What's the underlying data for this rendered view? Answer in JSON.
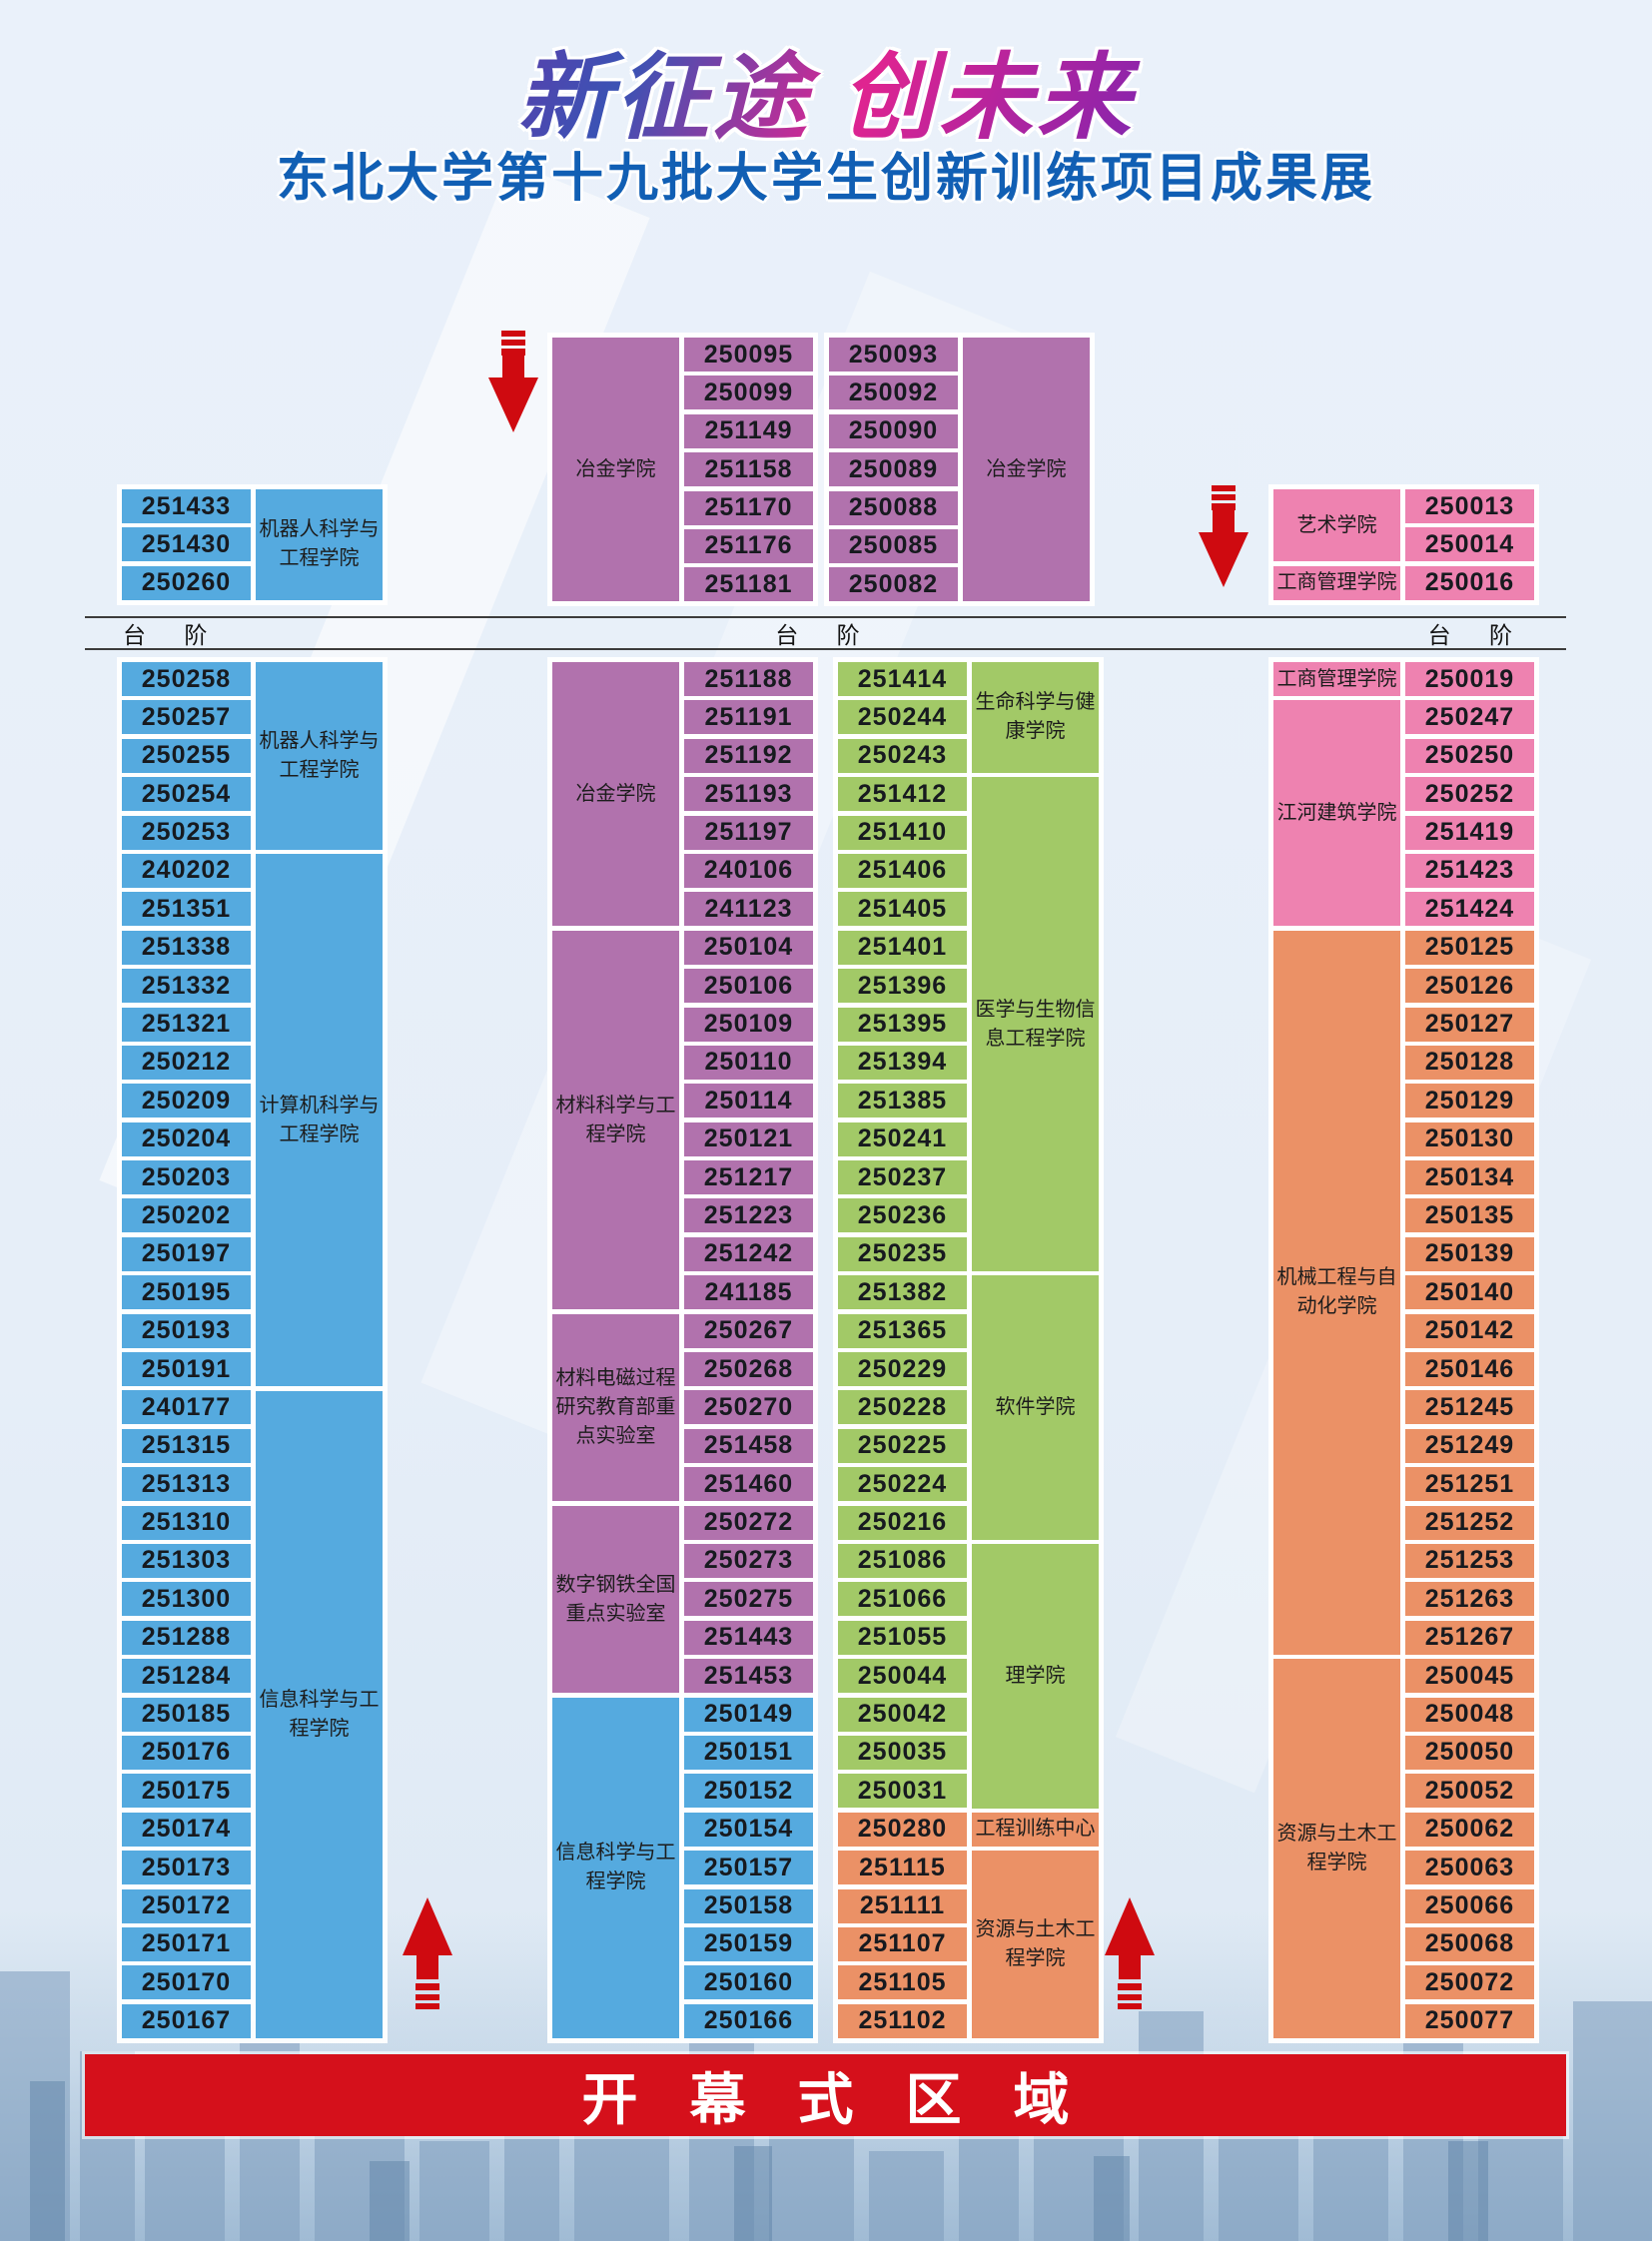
{
  "title": "新征途 创未来",
  "subtitle": "东北大学第十九批大学生创新训练项目成果展",
  "stairs_label": "台 阶",
  "opening_banner": "开幕式区域",
  "colors": {
    "blue": "#55aadf",
    "purple": "#b172ad",
    "green": "#a2c967",
    "orange": "#eb9166",
    "pink": "#ee82b0",
    "arrow_red": "#cf0a10",
    "banner_red": "#d5101b",
    "subtitle_blue": "#115fb4"
  },
  "groups": [
    {
      "id": "t1",
      "label_side": "right",
      "blocks": [
        {
          "college": "机器人科学与工程学院",
          "color": "blue",
          "booths": [
            "251433",
            "251430",
            "250260"
          ]
        }
      ]
    },
    {
      "id": "t2",
      "label_side": "left",
      "blocks": [
        {
          "college": "冶金学院",
          "color": "purple",
          "booths": [
            "250095",
            "250099",
            "251149",
            "251158",
            "251170",
            "251176",
            "251181"
          ]
        }
      ]
    },
    {
      "id": "t3",
      "label_side": "right",
      "blocks": [
        {
          "college": "冶金学院",
          "color": "purple",
          "booths": [
            "250093",
            "250092",
            "250090",
            "250089",
            "250088",
            "250085",
            "250082"
          ]
        }
      ]
    },
    {
      "id": "t4",
      "label_side": "left",
      "blocks": [
        {
          "college": "艺术学院",
          "color": "pink",
          "booths": [
            "250013",
            "250014"
          ]
        },
        {
          "college": "工商管理学院",
          "color": "pink",
          "booths": [
            "250016"
          ]
        }
      ]
    },
    {
      "id": "ga",
      "label_side": "right",
      "blocks": [
        {
          "college": "机器人科学与工程学院",
          "color": "blue",
          "booths": [
            "250258",
            "250257",
            "250255",
            "250254",
            "250253"
          ]
        },
        {
          "college": "计算机科学与工程学院",
          "color": "blue",
          "booths": [
            "240202",
            "251351",
            "251338",
            "251332",
            "251321",
            "250212",
            "250209",
            "250204",
            "250203",
            "250202",
            "250197",
            "250195",
            "250193",
            "250191"
          ]
        },
        {
          "college": "信息科学与工程学院",
          "color": "blue",
          "booths": [
            "240177",
            "251315",
            "251313",
            "251310",
            "251303",
            "251300",
            "251288",
            "251284",
            "250185",
            "250176",
            "250175",
            "250174",
            "250173",
            "250172",
            "250171",
            "250170",
            "250167"
          ]
        }
      ]
    },
    {
      "id": "gb",
      "label_side": "left",
      "blocks": [
        {
          "college": "冶金学院",
          "color": "purple",
          "booths": [
            "251188",
            "251191",
            "251192",
            "251193",
            "251197",
            "240106",
            "241123"
          ]
        },
        {
          "college": "材料科学与工程学院",
          "color": "purple",
          "booths": [
            "250104",
            "250106",
            "250109",
            "250110",
            "250114",
            "250121",
            "251217",
            "251223",
            "251242",
            "241185"
          ]
        },
        {
          "college": "材料电磁过程研究教育部重点实验室",
          "color": "purple",
          "booths": [
            "250267",
            "250268",
            "250270",
            "251458",
            "251460"
          ]
        },
        {
          "college": "数字钢铁全国重点实验室",
          "color": "purple",
          "booths": [
            "250272",
            "250273",
            "250275",
            "251443",
            "251453"
          ]
        },
        {
          "college": "信息科学与工程学院",
          "color": "blue",
          "booths": [
            "250149",
            "250151",
            "250152",
            "250154",
            "250157",
            "250158",
            "250159",
            "250160",
            "250166"
          ]
        }
      ]
    },
    {
      "id": "gc",
      "label_side": "right",
      "blocks": [
        {
          "college": "生命科学与健康学院",
          "color": "green",
          "booths": [
            "251414",
            "250244",
            "250243"
          ]
        },
        {
          "college": "医学与生物信息工程学院",
          "color": "green",
          "booths": [
            "251412",
            "251410",
            "251406",
            "251405",
            "251401",
            "251396",
            "251395",
            "251394",
            "251385",
            "250241",
            "250237",
            "250236",
            "250235"
          ]
        },
        {
          "college": "软件学院",
          "color": "green",
          "booths": [
            "251382",
            "251365",
            "250229",
            "250228",
            "250225",
            "250224",
            "250216"
          ]
        },
        {
          "college": "理学院",
          "color": "green",
          "booths": [
            "251086",
            "251066",
            "251055",
            "250044",
            "250042",
            "250035",
            "250031"
          ]
        },
        {
          "college": "工程训练中心",
          "color": "orange",
          "booths": [
            "250280"
          ]
        },
        {
          "college": "资源与土木工程学院",
          "color": "orange",
          "booths": [
            "251115",
            "251111",
            "251107",
            "251105",
            "251102"
          ]
        }
      ]
    },
    {
      "id": "gd",
      "label_side": "left",
      "blocks": [
        {
          "college": "工商管理学院",
          "color": "pink",
          "booths": [
            "250019"
          ]
        },
        {
          "college": "江河建筑学院",
          "color": "pink",
          "booths": [
            "250247",
            "250250",
            "250252",
            "251419",
            "251423",
            "251424"
          ]
        },
        {
          "college": "机械工程与自动化学院",
          "color": "orange",
          "booths": [
            "250125",
            "250126",
            "250127",
            "250128",
            "250129",
            "250130",
            "250134",
            "250135",
            "250139",
            "250140",
            "250142",
            "250146",
            "251245",
            "251249",
            "251251",
            "251252",
            "251253",
            "251263",
            "251267"
          ]
        },
        {
          "college": "资源与土木工程学院",
          "color": "orange",
          "booths": [
            "250045",
            "250048",
            "250050",
            "250052",
            "250062",
            "250063",
            "250066",
            "250068",
            "250072",
            "250077"
          ]
        }
      ]
    }
  ]
}
